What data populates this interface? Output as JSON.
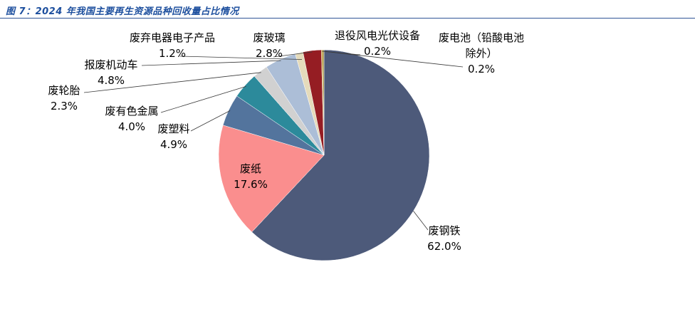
{
  "header": {
    "title": "图 7：2024 年我国主要再生资源品种回收量占比情况"
  },
  "colors": {
    "title": "#1D4F9E",
    "divider": "#2F5597",
    "leader_line": "#3A3A3A",
    "label_text": "#000000",
    "background": "#FFFFFF"
  },
  "chart_data": {
    "type": "pie",
    "title": "2024 年我国主要再生资源品种回收量占比情况",
    "unit": "%",
    "total": 100.0,
    "start_angle_deg": 0,
    "direction": "clockwise",
    "legend": "none",
    "label_position": "outside-with-leader-lines",
    "slices": [
      {
        "name": "废钢铁",
        "value": 62.0,
        "pct_label": "62.0%",
        "color": "#4D5A7A"
      },
      {
        "name": "废纸",
        "value": 17.6,
        "pct_label": "17.6%",
        "color": "#FA8E8E"
      },
      {
        "name": "废塑料",
        "value": 4.9,
        "pct_label": "4.9%",
        "color": "#53749D"
      },
      {
        "name": "废有色金属",
        "value": 4.0,
        "pct_label": "4.0%",
        "color": "#2C8A9B"
      },
      {
        "name": "废轮胎",
        "value": 2.3,
        "pct_label": "2.3%",
        "color": "#D1D1D1"
      },
      {
        "name": "报废机动车",
        "value": 4.8,
        "pct_label": "4.8%",
        "color": "#ACBED7"
      },
      {
        "name": "废弃电器电子产品",
        "value": 1.2,
        "pct_label": "1.2%",
        "color": "#E5DBBB"
      },
      {
        "name": "废玻璃",
        "value": 2.8,
        "pct_label": "2.8%",
        "color": "#951D23"
      },
      {
        "name": "退役风电光伏设备",
        "value": 0.2,
        "pct_label": "0.2%",
        "color": "#C09A2C"
      },
      {
        "name": "废电池（铅酸电池除外）",
        "value": 0.2,
        "pct_label": "0.2%",
        "color": "#8C7B24"
      }
    ]
  }
}
